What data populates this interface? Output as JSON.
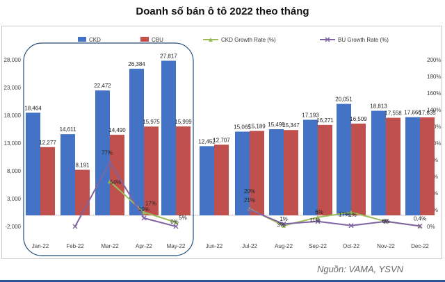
{
  "chart_data": {
    "type": "bar",
    "title": "Doanh số bán ô tô 2022 theo tháng",
    "source": "Nguồn: VAMA, YSVN",
    "categories": [
      "Jan-22",
      "Feb-22",
      "Mar-22",
      "Apr-22",
      "May-22",
      "Jun-22",
      "Jul-22",
      "Aug-22",
      "Sep-22",
      "Oct-22",
      "Nov-22",
      "Dec-22"
    ],
    "series": [
      {
        "name": "CKD",
        "kind": "bar",
        "axis": "left",
        "color": "#4472c4",
        "values": [
          18464,
          14611,
          22472,
          26384,
          27817,
          12452,
          15065,
          15499,
          17193,
          20051,
          18813,
          17666
        ],
        "labels": [
          "18,464",
          "14,611",
          "22,472",
          "26,384",
          "27,817",
          "12,452",
          "15,065",
          "15,499",
          "17,193",
          "20,051",
          "18,813",
          "17,666"
        ]
      },
      {
        "name": "CBU",
        "kind": "bar",
        "axis": "left",
        "color": "#c0504d",
        "values": [
          12277,
          8191,
          14490,
          15975,
          15999,
          12707,
          15189,
          15347,
          16271,
          16509,
          17558,
          17635
        ],
        "labels": [
          "12,277",
          "8,191",
          "14,490",
          "15,975",
          "15,999",
          "12,707",
          "15,189",
          "15,347",
          "16,271",
          "16,509",
          "17,558",
          "17,635"
        ]
      },
      {
        "name": "CKD Growth Rate (%)",
        "kind": "line",
        "axis": "right",
        "color": "#9bbb59",
        "values": [
          null,
          null,
          54,
          17,
          5,
          null,
          21,
          1,
          11,
          17,
          6,
          0.4
        ]
      },
      {
        "name": "BU Growth Rate (%)",
        "kind": "line",
        "axis": "right",
        "color": "#8064a2",
        "values": [
          null,
          0,
          77,
          10,
          0,
          null,
          20,
          3,
          6,
          1,
          6,
          0.4
        ]
      }
    ],
    "line_labels": [
      {
        "cat": 2,
        "text": "77%",
        "value": 77
      },
      {
        "cat": 2,
        "text": "54%",
        "value": 54
      },
      {
        "cat": 3,
        "text": "17%",
        "value": 17
      },
      {
        "cat": 3,
        "text": "10%",
        "value": 10
      },
      {
        "cat": 4,
        "text": "5%",
        "value": 5
      },
      {
        "cat": 4,
        "text": "0%",
        "value": 0
      },
      {
        "cat": 6,
        "text": "20%",
        "value": 20
      },
      {
        "cat": 6,
        "text": "21%",
        "value": 21
      },
      {
        "cat": 7,
        "text": "1%",
        "value": 1
      },
      {
        "cat": 7,
        "text": "3%",
        "value": 3
      },
      {
        "cat": 8,
        "text": "6%",
        "value": 6
      },
      {
        "cat": 8,
        "text": "11%",
        "value": 11
      },
      {
        "cat": 9,
        "text": "1%",
        "value": 1
      },
      {
        "cat": 9,
        "text": "17%",
        "value": 17
      },
      {
        "cat": 10,
        "text": "6%",
        "value": 6
      },
      {
        "cat": 11,
        "text": "0.4%",
        "value": 0.4
      }
    ],
    "y_left": {
      "min": -2000,
      "max": 28000,
      "ticks": [
        -2000,
        3000,
        8000,
        13000,
        18000,
        23000,
        28000
      ],
      "tick_labels": [
        "-2,000",
        "3,000",
        "8,000",
        "13,000",
        "18,000",
        "23,000",
        "28,000"
      ]
    },
    "y_right": {
      "min": 0,
      "max": 200,
      "ticks": [
        0,
        20,
        40,
        60,
        80,
        100,
        120,
        140,
        160,
        180,
        200
      ],
      "tick_labels": [
        "0%",
        "20%",
        "40%",
        "60%",
        "80%",
        "100%",
        "120%",
        "140%",
        "160%",
        "180%",
        "200%"
      ]
    },
    "legend_position": "top",
    "highlight": {
      "from": "Jan-22",
      "to": "May-22"
    },
    "gap_after": "May-22"
  }
}
